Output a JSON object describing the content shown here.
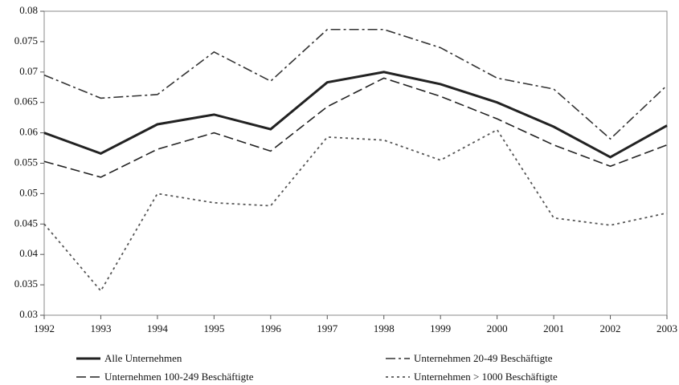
{
  "chart_data": {
    "type": "line",
    "categories": [
      "1992",
      "1993",
      "1994",
      "1995",
      "1996",
      "1997",
      "1998",
      "1999",
      "2000",
      "2001",
      "2002",
      "2003"
    ],
    "series": [
      {
        "name": "Alle Unternehmen",
        "color": "#222222",
        "style": "solid",
        "values": [
          0.06,
          0.0566,
          0.0614,
          0.063,
          0.0606,
          0.0683,
          0.07,
          0.068,
          0.065,
          0.061,
          0.056,
          0.0612
        ]
      },
      {
        "name": "Unternehmen 20-49 Beschäftigte",
        "color": "#333333",
        "style": "dashdot",
        "values": [
          0.0695,
          0.0657,
          0.0663,
          0.0733,
          0.0685,
          0.077,
          0.077,
          0.074,
          0.069,
          0.0672,
          0.059,
          0.0678
        ]
      },
      {
        "name": "Unternehmen 100-249 Beschäftigte",
        "color": "#222222",
        "style": "dashed",
        "values": [
          0.0553,
          0.0527,
          0.0573,
          0.06,
          0.057,
          0.0643,
          0.069,
          0.066,
          0.0623,
          0.058,
          0.0545,
          0.058
        ]
      },
      {
        "name": "Unternehmen > 1000 Beschäftigte",
        "color": "#555555",
        "style": "dotted",
        "values": [
          0.045,
          0.034,
          0.05,
          0.0485,
          0.048,
          0.0593,
          0.0588,
          0.0555,
          0.0605,
          0.046,
          0.0448,
          0.0468
        ]
      }
    ],
    "ylim": [
      0.03,
      0.08
    ],
    "yticks": [
      0.03,
      0.035,
      0.04,
      0.045,
      0.05,
      0.055,
      0.06,
      0.065,
      0.07,
      0.075,
      0.08
    ],
    "legend": "bottom"
  }
}
